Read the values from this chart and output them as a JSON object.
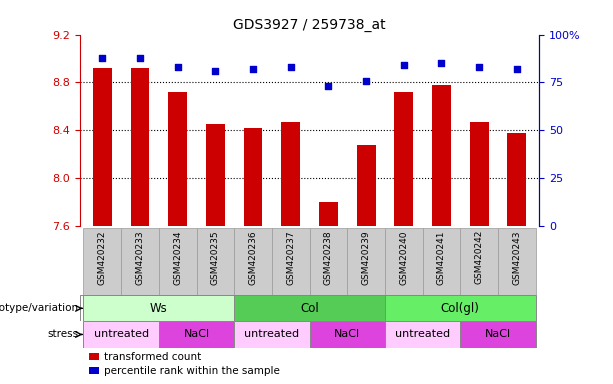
{
  "title": "GDS3927 / 259738_at",
  "samples": [
    "GSM420232",
    "GSM420233",
    "GSM420234",
    "GSM420235",
    "GSM420236",
    "GSM420237",
    "GSM420238",
    "GSM420239",
    "GSM420240",
    "GSM420241",
    "GSM420242",
    "GSM420243"
  ],
  "bar_values": [
    8.92,
    8.92,
    8.72,
    8.45,
    8.42,
    8.47,
    7.8,
    8.28,
    8.72,
    8.78,
    8.47,
    8.38
  ],
  "percentile_values": [
    88,
    88,
    83,
    81,
    82,
    83,
    73,
    76,
    84,
    85,
    83,
    82
  ],
  "bar_color": "#cc0000",
  "dot_color": "#0000cc",
  "ylim_left": [
    7.6,
    9.2
  ],
  "ylim_right": [
    0,
    100
  ],
  "yticks_left": [
    7.6,
    8.0,
    8.4,
    8.8,
    9.2
  ],
  "yticks_right": [
    0,
    25,
    50,
    75,
    100
  ],
  "ylabel_right_labels": [
    "0",
    "25",
    "50",
    "75",
    "100%"
  ],
  "hline_values": [
    8.0,
    8.4,
    8.8
  ],
  "bar_baseline": 7.6,
  "genotype_groups": [
    {
      "label": "Ws",
      "start": 0,
      "end": 3,
      "color": "#ccffcc"
    },
    {
      "label": "Col",
      "start": 4,
      "end": 7,
      "color": "#55cc55"
    },
    {
      "label": "Col(gl)",
      "start": 8,
      "end": 11,
      "color": "#66ee66"
    }
  ],
  "stress_groups": [
    {
      "label": "untreated",
      "start": 0,
      "end": 1,
      "color": "#ffccff"
    },
    {
      "label": "NaCl",
      "start": 2,
      "end": 3,
      "color": "#dd44dd"
    },
    {
      "label": "untreated",
      "start": 4,
      "end": 5,
      "color": "#ffccff"
    },
    {
      "label": "NaCl",
      "start": 6,
      "end": 7,
      "color": "#dd44dd"
    },
    {
      "label": "untreated",
      "start": 8,
      "end": 9,
      "color": "#ffccff"
    },
    {
      "label": "NaCl",
      "start": 10,
      "end": 11,
      "color": "#dd44dd"
    }
  ],
  "legend_items": [
    {
      "label": "transformed count",
      "color": "#cc0000"
    },
    {
      "label": "percentile rank within the sample",
      "color": "#0000cc"
    }
  ],
  "genotype_label": "genotype/variation",
  "stress_label": "stress",
  "background_color": "#ffffff",
  "tick_label_color_left": "#cc0000",
  "tick_label_color_right": "#0000cc",
  "sample_bg_color": "#cccccc",
  "sample_border_color": "#999999"
}
